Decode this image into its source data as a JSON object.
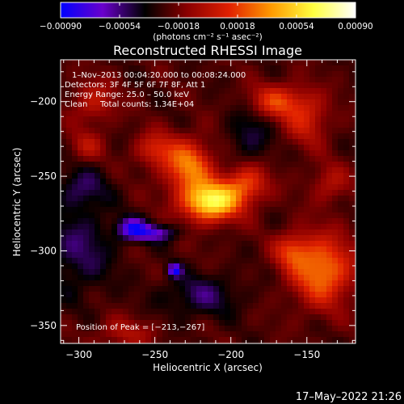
{
  "chart_data": {
    "type": "heatmap",
    "title": "Reconstructed RHESSI Image",
    "xlabel": "Heliocentric X (arcsec)",
    "ylabel": "Heliocentric Y (arcsec)",
    "xlim": [
      -312,
      -118
    ],
    "ylim": [
      -362,
      -172
    ],
    "x_ticks": [
      -300,
      -250,
      -200,
      -150
    ],
    "x_tick_labels": [
      "−300",
      "−250",
      "−200",
      "−150"
    ],
    "y_ticks": [
      -200,
      -250,
      -300,
      -350
    ],
    "y_tick_labels": [
      "−200",
      "−250",
      "−300",
      "−350"
    ],
    "colorbar": {
      "range": [
        -0.0009,
        0.0009
      ],
      "ticks": [
        -0.0009,
        -0.00054,
        -0.00018,
        0.00018,
        0.00054,
        0.0009
      ],
      "tick_labels": [
        "−0.00090",
        "−0.00054",
        "−0.00018",
        "0.00018",
        "0.00054",
        "0.00090"
      ],
      "colormap": [
        "#0000ff",
        "#6a00cc",
        "#000000",
        "#8a0000",
        "#e02000",
        "#ff9a00",
        "#ffff40",
        "#ffffff"
      ]
    },
    "annotations": {
      "time_range": "1–Nov–2013 00:04:20.000 to 00:08:24.000",
      "detectors": "Detectors: 3F 4F 5F 6F 7F 8F, Att 1",
      "energy": "Energy Range: 25.0 – 50.0 keV",
      "clean_label": "Clean",
      "counts": "Total counts: 1.34E+04",
      "peak": "Position of Peak = [−213,−267]"
    },
    "sources": [
      {
        "x": -213,
        "y": -267,
        "sx": 13,
        "sy": 9,
        "amp": 0.0009
      },
      {
        "x": -228,
        "y": -243,
        "sx": 11,
        "sy": 12,
        "amp": 0.00056
      },
      {
        "x": -190,
        "y": -255,
        "sx": 10,
        "sy": 9,
        "amp": 0.00042
      },
      {
        "x": -250,
        "y": -232,
        "sx": 9,
        "sy": 8,
        "amp": 0.00032
      },
      {
        "x": -140,
        "y": -313,
        "sx": 14,
        "sy": 16,
        "amp": 0.00058
      },
      {
        "x": -160,
        "y": -300,
        "sx": 8,
        "sy": 8,
        "amp": 0.00034
      },
      {
        "x": -170,
        "y": -200,
        "sx": 13,
        "sy": 8,
        "amp": 0.0004
      },
      {
        "x": -150,
        "y": -212,
        "sx": 10,
        "sy": 12,
        "amp": 0.0003
      },
      {
        "x": -135,
        "y": -255,
        "sx": 9,
        "sy": 9,
        "amp": 0.00022
      },
      {
        "x": -290,
        "y": -200,
        "sx": 10,
        "sy": 10,
        "amp": 0.00026
      },
      {
        "x": -295,
        "y": -230,
        "sx": 8,
        "sy": 7,
        "amp": 0.00022
      },
      {
        "x": -270,
        "y": -355,
        "sx": 14,
        "sy": 7,
        "amp": 0.0002
      },
      {
        "x": -250,
        "y": -288,
        "sx": 10,
        "sy": 4,
        "amp": -0.0004
      },
      {
        "x": -265,
        "y": -285,
        "sx": 7,
        "sy": 5,
        "amp": -0.00048
      },
      {
        "x": -237,
        "y": -313,
        "sx": 3,
        "sy": 3,
        "amp": -0.0006
      },
      {
        "x": -300,
        "y": -300,
        "sx": 16,
        "sy": 20,
        "amp": -0.00024
      },
      {
        "x": -220,
        "y": -330,
        "sx": 18,
        "sy": 10,
        "amp": -0.00024
      },
      {
        "x": -188,
        "y": -222,
        "sx": 10,
        "sy": 14,
        "amp": -0.0002
      },
      {
        "x": -298,
        "y": -258,
        "sx": 12,
        "sy": 10,
        "amp": -0.00022
      }
    ]
  },
  "colorbar_unit": "(photons cm⁻² s⁻¹ asec⁻²)",
  "footer_timestamp": "17–May–2022 21:26"
}
